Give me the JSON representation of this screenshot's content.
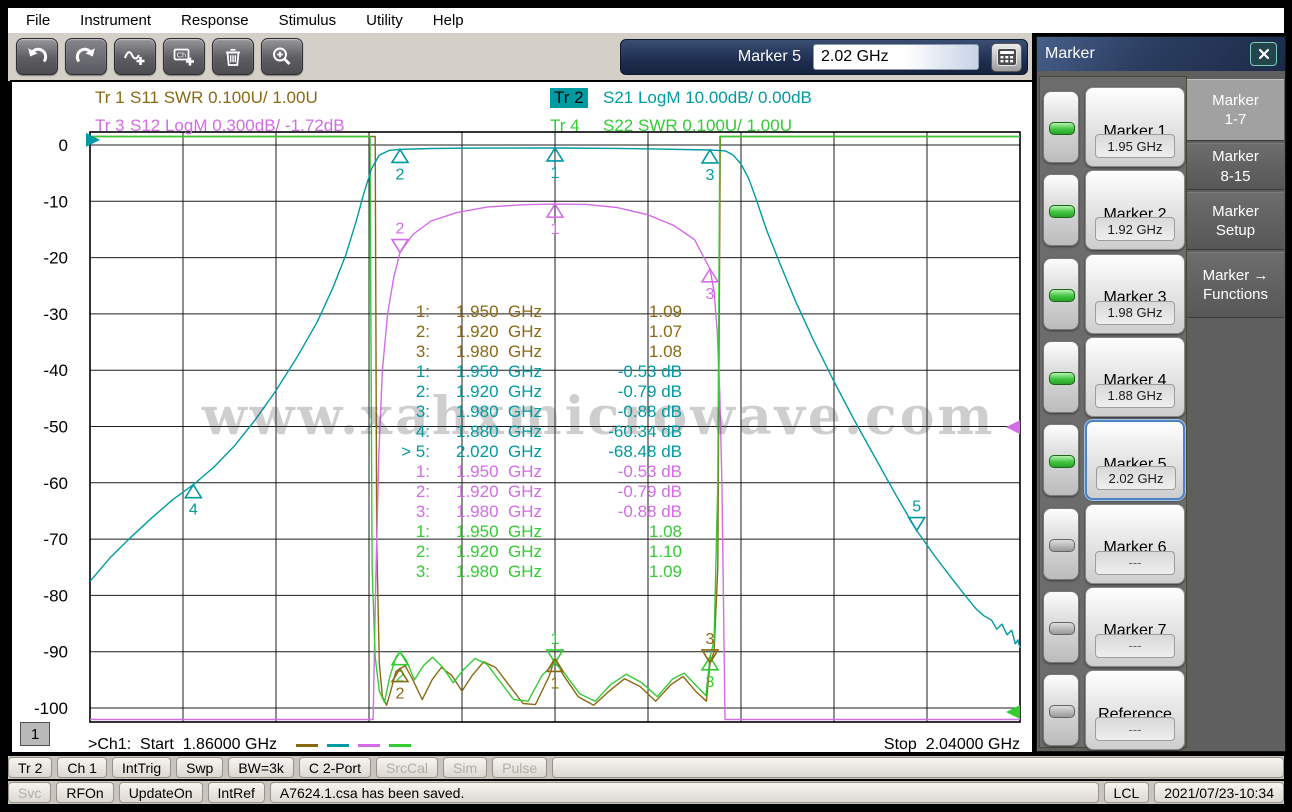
{
  "menu": {
    "items": [
      "File",
      "Instrument",
      "Response",
      "Stimulus",
      "Utility",
      "Help"
    ]
  },
  "toolbar": {
    "buttons": [
      {
        "name": "undo-icon",
        "pressed": false
      },
      {
        "name": "redo-icon",
        "pressed": true
      },
      {
        "name": "add-trace-icon",
        "pressed": false
      },
      {
        "name": "add-channel-icon",
        "pressed": false
      },
      {
        "name": "delete-icon",
        "pressed": false
      },
      {
        "name": "zoom-icon",
        "pressed": false
      }
    ],
    "marker_label": "Marker 5",
    "marker_value": "2.02 GHz",
    "keypad_icon": "keypad-icon"
  },
  "panel": {
    "title": "Marker",
    "close_icon": "close-icon",
    "tabs": [
      {
        "lines": [
          "Marker",
          "1-7"
        ],
        "active": true
      },
      {
        "lines": [
          "Marker",
          "8-15"
        ],
        "active": false
      },
      {
        "lines": [
          "Marker",
          "Setup"
        ],
        "active": false
      },
      {
        "lines": [
          "Marker →",
          "Functions"
        ],
        "active": false
      }
    ],
    "markers": [
      {
        "label": "Marker 1",
        "value": "1.95 GHz",
        "led": true,
        "selected": false
      },
      {
        "label": "Marker 2",
        "value": "1.92 GHz",
        "led": true,
        "selected": false
      },
      {
        "label": "Marker 3",
        "value": "1.98 GHz",
        "led": true,
        "selected": false
      },
      {
        "label": "Marker 4",
        "value": "1.88 GHz",
        "led": true,
        "selected": false
      },
      {
        "label": "Marker 5",
        "value": "2.02 GHz",
        "led": true,
        "selected": true
      },
      {
        "label": "Marker 6",
        "value": "---",
        "led": false,
        "selected": false
      },
      {
        "label": "Marker 7",
        "value": "---",
        "led": false,
        "selected": false
      },
      {
        "label": "Reference",
        "value": "---",
        "led": false,
        "selected": false
      }
    ]
  },
  "traces": [
    {
      "key": "tr1",
      "id": "Tr 1",
      "label": "S11 SWR 0.100U/ 1.00U",
      "color": "#8B6914",
      "chip": false
    },
    {
      "key": "tr2",
      "id": "Tr 2",
      "label": "S21 LogM 10.00dB/ 0.00dB",
      "color": "#009aa2",
      "chip": true
    },
    {
      "key": "tr3",
      "id": "Tr 3",
      "label": "S12 LogM 0.300dB/ -1.72dB",
      "color": "#d36ce6",
      "chip": false
    },
    {
      "key": "tr4",
      "id": "Tr 4",
      "label": "S22 SWR 0.100U/ 1.00U",
      "color": "#33cc33",
      "chip": false
    }
  ],
  "watermark": "www.xahxmicrowave.com",
  "footer": {
    "channel": "1",
    "start": ">Ch1:  Start  1.86000 GHz",
    "stop": "Stop  2.04000 GHz"
  },
  "status_row1": [
    {
      "label": "Tr 2",
      "enabled": true
    },
    {
      "label": "Ch 1",
      "enabled": true
    },
    {
      "label": "IntTrig",
      "enabled": true
    },
    {
      "label": "Swp",
      "enabled": true
    },
    {
      "label": "BW=3k",
      "enabled": true
    },
    {
      "label": "C 2-Port",
      "enabled": true
    },
    {
      "label": "SrcCal",
      "enabled": false
    },
    {
      "label": "Sim",
      "enabled": false
    },
    {
      "label": "Pulse",
      "enabled": false
    },
    {
      "label": "",
      "enabled": false,
      "grow": true
    }
  ],
  "status_row2": [
    {
      "label": "Svc",
      "enabled": false
    },
    {
      "label": "RFOn",
      "enabled": true
    },
    {
      "label": "UpdateOn",
      "enabled": true
    },
    {
      "label": "IntRef",
      "enabled": true
    },
    {
      "label": "A7624.1.csa has been saved.",
      "enabled": true,
      "grow": true,
      "left": true,
      "message": true
    },
    {
      "label": "LCL",
      "enabled": true
    },
    {
      "label": "2021/07/23-10:34",
      "enabled": true
    }
  ],
  "chart_data": {
    "type": "line",
    "x_axis": {
      "unit": "GHz",
      "start": 1.86,
      "stop": 2.04,
      "divisions": 10
    },
    "y_axis": {
      "unit": "dB",
      "ticks": [
        0,
        -10,
        -20,
        -30,
        -40,
        -50,
        -60,
        -70,
        -80,
        -90,
        -100
      ]
    },
    "grid": true,
    "series": [
      {
        "key": "tr1",
        "name": "S11 SWR",
        "scale": "swr",
        "points": [
          [
            1.86,
            2.2
          ],
          [
            1.9152,
            2.2
          ],
          [
            1.9155,
            1.3
          ],
          [
            1.916,
            1.08
          ],
          [
            1.9166,
            1.02
          ],
          [
            1.9174,
            1.005
          ],
          [
            1.9182,
            1.03
          ],
          [
            1.9192,
            1.065
          ],
          [
            1.92,
            1.07
          ],
          [
            1.921,
            1.075
          ],
          [
            1.9225,
            1.05
          ],
          [
            1.9243,
            1.015
          ],
          [
            1.9262,
            1.05
          ],
          [
            1.928,
            1.072
          ],
          [
            1.93,
            1.058
          ],
          [
            1.932,
            1.03
          ],
          [
            1.934,
            1.058
          ],
          [
            1.9362,
            1.082
          ],
          [
            1.9385,
            1.072
          ],
          [
            1.941,
            1.042
          ],
          [
            1.9438,
            1.008
          ],
          [
            1.9462,
            1.006
          ],
          [
            1.9488,
            1.055
          ],
          [
            1.95,
            1.088
          ],
          [
            1.9515,
            1.06
          ],
          [
            1.9545,
            1.02
          ],
          [
            1.9575,
            1.005
          ],
          [
            1.9605,
            1.03
          ],
          [
            1.9635,
            1.052
          ],
          [
            1.9665,
            1.038
          ],
          [
            1.9695,
            1.012
          ],
          [
            1.9725,
            1.042
          ],
          [
            1.9748,
            1.056
          ],
          [
            1.9772,
            1.03
          ],
          [
            1.9793,
            1.012
          ],
          [
            1.98,
            1.08
          ],
          [
            1.9808,
            1.1
          ],
          [
            1.9815,
            1.25
          ],
          [
            1.982,
            2.2
          ],
          [
            2.04,
            2.2
          ]
        ]
      },
      {
        "key": "tr3",
        "name": "S12 LogM",
        "scale": "db",
        "points": [
          [
            1.86,
            -103
          ],
          [
            1.9148,
            -103
          ],
          [
            1.9153,
            -78
          ],
          [
            1.9159,
            -55
          ],
          [
            1.9166,
            -40
          ],
          [
            1.9176,
            -30
          ],
          [
            1.9188,
            -23.5
          ],
          [
            1.92,
            -19.1
          ],
          [
            1.9225,
            -15.9
          ],
          [
            1.926,
            -13.5
          ],
          [
            1.931,
            -12.0
          ],
          [
            1.937,
            -11.0
          ],
          [
            1.944,
            -10.6
          ],
          [
            1.95,
            -10.5
          ],
          [
            1.956,
            -10.55
          ],
          [
            1.962,
            -11.1
          ],
          [
            1.968,
            -12.4
          ],
          [
            1.973,
            -14.3
          ],
          [
            1.977,
            -16.8
          ],
          [
            1.98,
            -22.0
          ],
          [
            1.9808,
            -26
          ],
          [
            1.9814,
            -33
          ],
          [
            1.9819,
            -44
          ],
          [
            1.9823,
            -60
          ],
          [
            1.9826,
            -80
          ],
          [
            1.9829,
            -103
          ],
          [
            2.04,
            -103
          ]
        ]
      },
      {
        "key": "tr4",
        "name": "S22 SWR",
        "scale": "swr",
        "points": [
          [
            1.86,
            2.2
          ],
          [
            1.9142,
            2.2
          ],
          [
            1.9146,
            1.25
          ],
          [
            1.9152,
            1.09
          ],
          [
            1.916,
            1.03
          ],
          [
            1.917,
            1.01
          ],
          [
            1.918,
            1.055
          ],
          [
            1.9192,
            1.09
          ],
          [
            1.92,
            1.1
          ],
          [
            1.9212,
            1.085
          ],
          [
            1.9228,
            1.05
          ],
          [
            1.9245,
            1.075
          ],
          [
            1.9263,
            1.09
          ],
          [
            1.9283,
            1.072
          ],
          [
            1.9303,
            1.045
          ],
          [
            1.9323,
            1.068
          ],
          [
            1.9345,
            1.088
          ],
          [
            1.9368,
            1.078
          ],
          [
            1.9393,
            1.048
          ],
          [
            1.942,
            1.015
          ],
          [
            1.9448,
            1.012
          ],
          [
            1.9475,
            1.058
          ],
          [
            1.95,
            1.08
          ],
          [
            1.9518,
            1.062
          ],
          [
            1.9548,
            1.025
          ],
          [
            1.9578,
            1.012
          ],
          [
            1.9608,
            1.042
          ],
          [
            1.9638,
            1.06
          ],
          [
            1.9668,
            1.045
          ],
          [
            1.9698,
            1.02
          ],
          [
            1.9728,
            1.052
          ],
          [
            1.975,
            1.062
          ],
          [
            1.9773,
            1.04
          ],
          [
            1.9792,
            1.022
          ],
          [
            1.98,
            1.09
          ],
          [
            1.9808,
            1.12
          ],
          [
            1.9815,
            1.4
          ],
          [
            1.9819,
            2.2
          ],
          [
            2.04,
            2.2
          ]
        ]
      },
      {
        "key": "tr2",
        "name": "S21 LogM",
        "scale": "db",
        "points": [
          [
            1.86,
            -77.5
          ],
          [
            1.864,
            -73.2
          ],
          [
            1.868,
            -69.6
          ],
          [
            1.872,
            -66.2
          ],
          [
            1.876,
            -63
          ],
          [
            1.88,
            -60.34
          ],
          [
            1.884,
            -57.2
          ],
          [
            1.888,
            -53.4
          ],
          [
            1.892,
            -48.8
          ],
          [
            1.896,
            -43.6
          ],
          [
            1.9,
            -37.8
          ],
          [
            1.904,
            -31.4
          ],
          [
            1.907,
            -25.4
          ],
          [
            1.9095,
            -19.6
          ],
          [
            1.9115,
            -13.6
          ],
          [
            1.913,
            -8.6
          ],
          [
            1.9145,
            -4.2
          ],
          [
            1.916,
            -1.8
          ],
          [
            1.918,
            -0.95
          ],
          [
            1.92,
            -0.79
          ],
          [
            1.926,
            -0.62
          ],
          [
            1.935,
            -0.55
          ],
          [
            1.95,
            -0.53
          ],
          [
            1.962,
            -0.6
          ],
          [
            1.97,
            -0.72
          ],
          [
            1.98,
            -0.88
          ],
          [
            1.983,
            -1.05
          ],
          [
            1.9845,
            -1.8
          ],
          [
            1.986,
            -3.4
          ],
          [
            1.9875,
            -6
          ],
          [
            1.989,
            -9.8
          ],
          [
            1.991,
            -15.2
          ],
          [
            1.9935,
            -21
          ],
          [
            1.9965,
            -27.6
          ],
          [
            2.0,
            -34.6
          ],
          [
            2.004,
            -42
          ],
          [
            2.008,
            -49
          ],
          [
            2.012,
            -55.6
          ],
          [
            2.016,
            -62.2
          ],
          [
            2.02,
            -68.48
          ],
          [
            2.0235,
            -73
          ],
          [
            2.0265,
            -76.6
          ],
          [
            2.029,
            -79.6
          ],
          [
            2.0315,
            -82.4
          ],
          [
            2.033,
            -83.6
          ],
          [
            2.0345,
            -84.4
          ],
          [
            2.0355,
            -86
          ],
          [
            2.0365,
            -85.1
          ],
          [
            2.0375,
            -87
          ],
          [
            2.0384,
            -86.2
          ],
          [
            2.0391,
            -88.6
          ],
          [
            2.0396,
            -87.9
          ],
          [
            2.04,
            -89.3
          ]
        ]
      }
    ],
    "markers": [
      {
        "trace": "tr2",
        "f": 1.95,
        "db": -0.53,
        "dir": "up",
        "label": "1"
      },
      {
        "trace": "tr2",
        "f": 1.92,
        "db": -0.79,
        "dir": "up",
        "label": "2"
      },
      {
        "trace": "tr2",
        "f": 1.98,
        "db": -0.88,
        "dir": "up",
        "label": "3"
      },
      {
        "trace": "tr2",
        "f": 1.88,
        "db": -60.34,
        "dir": "up",
        "label": "4"
      },
      {
        "trace": "tr2",
        "f": 2.02,
        "db": -68.48,
        "dir": "down",
        "label": "5"
      },
      {
        "trace": "tr3",
        "f": 1.92,
        "db": -19.1,
        "dir": "down",
        "label": "2"
      },
      {
        "trace": "tr3",
        "f": 1.95,
        "db": -10.5,
        "dir": "up",
        "label": "1"
      },
      {
        "trace": "tr3",
        "f": 1.98,
        "db": -22.0,
        "dir": "up",
        "label": "3"
      },
      {
        "trace": "tr4",
        "f": 1.95,
        "db": -92.0,
        "dir": "down",
        "label": "1"
      },
      {
        "trace": "tr4",
        "f": 1.92,
        "db": -90.0,
        "dir": "up",
        "label": "2"
      },
      {
        "trace": "tr4",
        "f": 1.98,
        "db": -90.9,
        "dir": "up",
        "label": "3"
      },
      {
        "trace": "tr1",
        "f": 1.95,
        "db": -91.2,
        "dir": "up",
        "label": "1"
      },
      {
        "trace": "tr1",
        "f": 1.92,
        "db": -93.0,
        "dir": "up",
        "label": "2"
      },
      {
        "trace": "tr1",
        "f": 1.98,
        "db": -92.0,
        "dir": "down",
        "label": "3"
      }
    ],
    "reference_pointers": [
      {
        "trace": "tr2",
        "side": "left",
        "db": 0.9
      },
      {
        "trace": "tr3",
        "side": "right",
        "db": -50.1
      },
      {
        "trace": "tr4",
        "side": "right",
        "db": -100.7
      }
    ],
    "readouts": [
      {
        "trace": "tr1",
        "n": "1:",
        "freq": "1.950  GHz",
        "value": "1.09"
      },
      {
        "trace": "tr1",
        "n": "2:",
        "freq": "1.920  GHz",
        "value": "1.07"
      },
      {
        "trace": "tr1",
        "n": "3:",
        "freq": "1.980  GHz",
        "value": "1.08"
      },
      {
        "trace": "tr2",
        "n": "1:",
        "freq": "1.950  GHz",
        "value": "-0.53 dB"
      },
      {
        "trace": "tr2",
        "n": "2:",
        "freq": "1.920  GHz",
        "value": "-0.79 dB"
      },
      {
        "trace": "tr2",
        "n": "3:",
        "freq": "1.980  GHz",
        "value": "-0.88 dB"
      },
      {
        "trace": "tr2",
        "n": "4:",
        "freq": "1.880  GHz",
        "value": "-60.34 dB"
      },
      {
        "trace": "tr2",
        "n": "> 5:",
        "freq": "2.020  GHz",
        "value": "-68.48 dB"
      },
      {
        "trace": "tr3",
        "n": "1:",
        "freq": "1.950  GHz",
        "value": "-0.53 dB"
      },
      {
        "trace": "tr3",
        "n": "2:",
        "freq": "1.920  GHz",
        "value": "-0.79 dB"
      },
      {
        "trace": "tr3",
        "n": "3:",
        "freq": "1.980  GHz",
        "value": "-0.88 dB"
      },
      {
        "trace": "tr4",
        "n": "1:",
        "freq": "1.950  GHz",
        "value": "1.08"
      },
      {
        "trace": "tr4",
        "n": "2:",
        "freq": "1.920  GHz",
        "value": "1.10"
      },
      {
        "trace": "tr4",
        "n": "3:",
        "freq": "1.980  GHz",
        "value": "1.09"
      }
    ]
  }
}
